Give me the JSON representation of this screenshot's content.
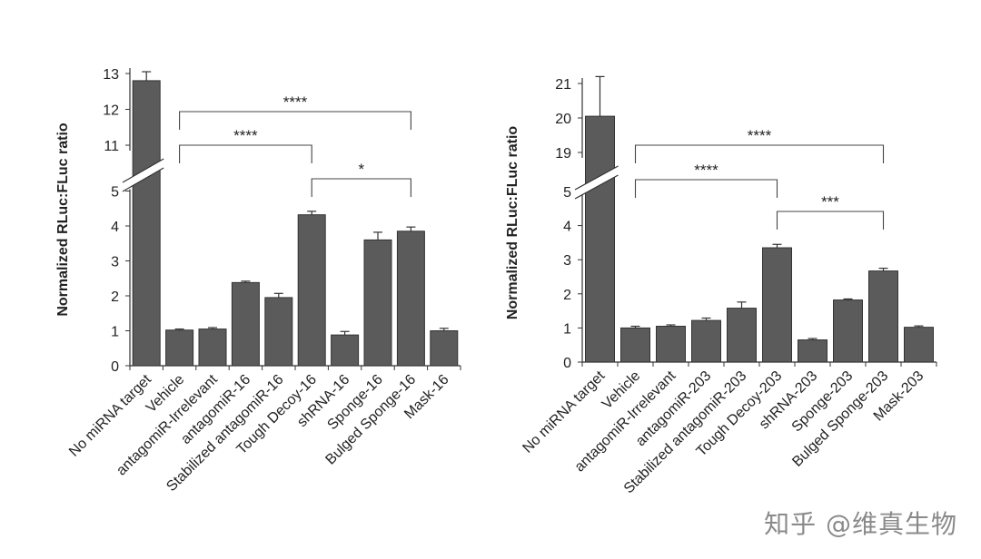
{
  "watermark": "知乎 @维真生物",
  "chart_data": [
    {
      "type": "bar",
      "ylabel": "Normalized RLuc:FLuc ratio",
      "axis_break": {
        "lower_range": [
          0,
          5
        ],
        "upper_range": [
          11,
          13
        ]
      },
      "yticks_lower": [
        0,
        1,
        2,
        3,
        4,
        5
      ],
      "yticks_upper": [
        11,
        12,
        13
      ],
      "categories": [
        "No miRNA target",
        "Vehicle",
        "antagomiR-Irrelevant",
        "antagomiR-16",
        "Stabilized antagomiR-16",
        "Tough Decoy-16",
        "shRNA-16",
        "Sponge-16",
        "Bulged Sponge-16",
        "Mask-16"
      ],
      "values": [
        12.8,
        1.02,
        1.05,
        2.38,
        1.95,
        4.32,
        0.88,
        3.6,
        3.85,
        1.0
      ],
      "errors": [
        0.25,
        0.03,
        0.04,
        0.04,
        0.12,
        0.1,
        0.1,
        0.22,
        0.12,
        0.07
      ],
      "significance": [
        {
          "from": "Vehicle",
          "to": "Bulged Sponge-16",
          "label": "****",
          "level": 11.0,
          "segment": "upper"
        },
        {
          "from": "Vehicle",
          "to": "Tough Decoy-16",
          "label": "****",
          "level": 11.0,
          "segment": "upper",
          "offset": 1
        },
        {
          "from": "Tough Decoy-16",
          "to": "Bulged Sponge-16",
          "label": "*",
          "level": 4.6,
          "segment": "lower"
        }
      ]
    },
    {
      "type": "bar",
      "ylabel": "Normalized RLuc:FLuc ratio",
      "axis_break": {
        "lower_range": [
          0,
          5
        ],
        "upper_range": [
          19,
          21
        ]
      },
      "yticks_lower": [
        0,
        1,
        2,
        3,
        4,
        5
      ],
      "yticks_upper": [
        19,
        20,
        21
      ],
      "categories": [
        "No miRNA target",
        "Vehicle",
        "antagomiR-Irrelevant",
        "antagomiR-203",
        "Stabilized antagomiR-203",
        "Tough Decoy-203",
        "shRNA-203",
        "Sponge-203",
        "Bulged Sponge-203",
        "Mask-203"
      ],
      "values": [
        20.05,
        1.0,
        1.05,
        1.22,
        1.58,
        3.35,
        0.65,
        1.82,
        2.67,
        1.02
      ],
      "errors": [
        1.15,
        0.05,
        0.04,
        0.07,
        0.18,
        0.1,
        0.04,
        0.03,
        0.08,
        0.04
      ],
      "significance": [
        {
          "from": "Vehicle",
          "to": "Bulged Sponge-203",
          "label": "****",
          "level": 19.0,
          "segment": "upper"
        },
        {
          "from": "Vehicle",
          "to": "Tough Decoy-203",
          "label": "****",
          "level": 19.0,
          "segment": "upper",
          "offset": 1
        },
        {
          "from": "Tough Decoy-203",
          "to": "Bulged Sponge-203",
          "label": "***",
          "level": 4.3,
          "segment": "lower"
        }
      ]
    }
  ]
}
